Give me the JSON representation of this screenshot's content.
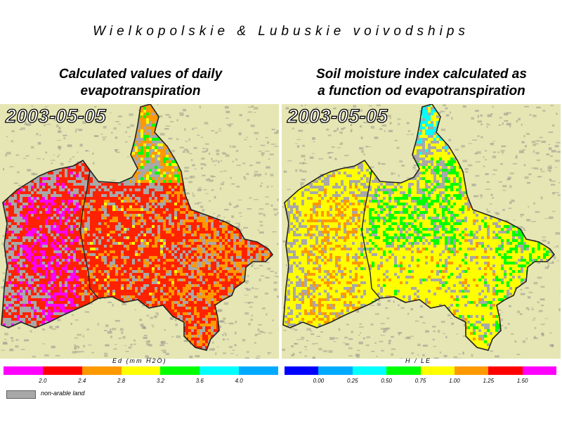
{
  "title": "Wielkopolskie & Lubuskie voivodships",
  "panels": [
    {
      "subtitle_line1": "Calculated values of daily",
      "subtitle_line2": "evapotranspiration",
      "date": "2003-05-05",
      "legend": {
        "units": "Ed (mm H2O)",
        "colors": [
          "#ff00ff",
          "#ff0000",
          "#ff9900",
          "#ffff00",
          "#00ff00",
          "#00ffff",
          "#00aaff"
        ],
        "ticks": [
          "2.0",
          "2.4",
          "2.8",
          "3.2",
          "3.6",
          "4.0"
        ]
      }
    },
    {
      "subtitle_line1": "Soil moisture index calculated as",
      "subtitle_line2": "a function od evapotranspiration",
      "date": "2003-05-05",
      "legend": {
        "units": "H / LE",
        "colors": [
          "#0000ff",
          "#00aaff",
          "#00ffff",
          "#00ff00",
          "#ffff00",
          "#ff9900",
          "#ff0000",
          "#ff00ff"
        ],
        "ticks": [
          "0.00",
          "0.25",
          "0.50",
          "0.75",
          "1.00",
          "1.25",
          "1.50"
        ]
      }
    }
  ],
  "nonarable_label": "non-arable land",
  "colors": {
    "background": "#e6e6b4",
    "nonarable": "#a8a8a8",
    "border": "#222222"
  }
}
